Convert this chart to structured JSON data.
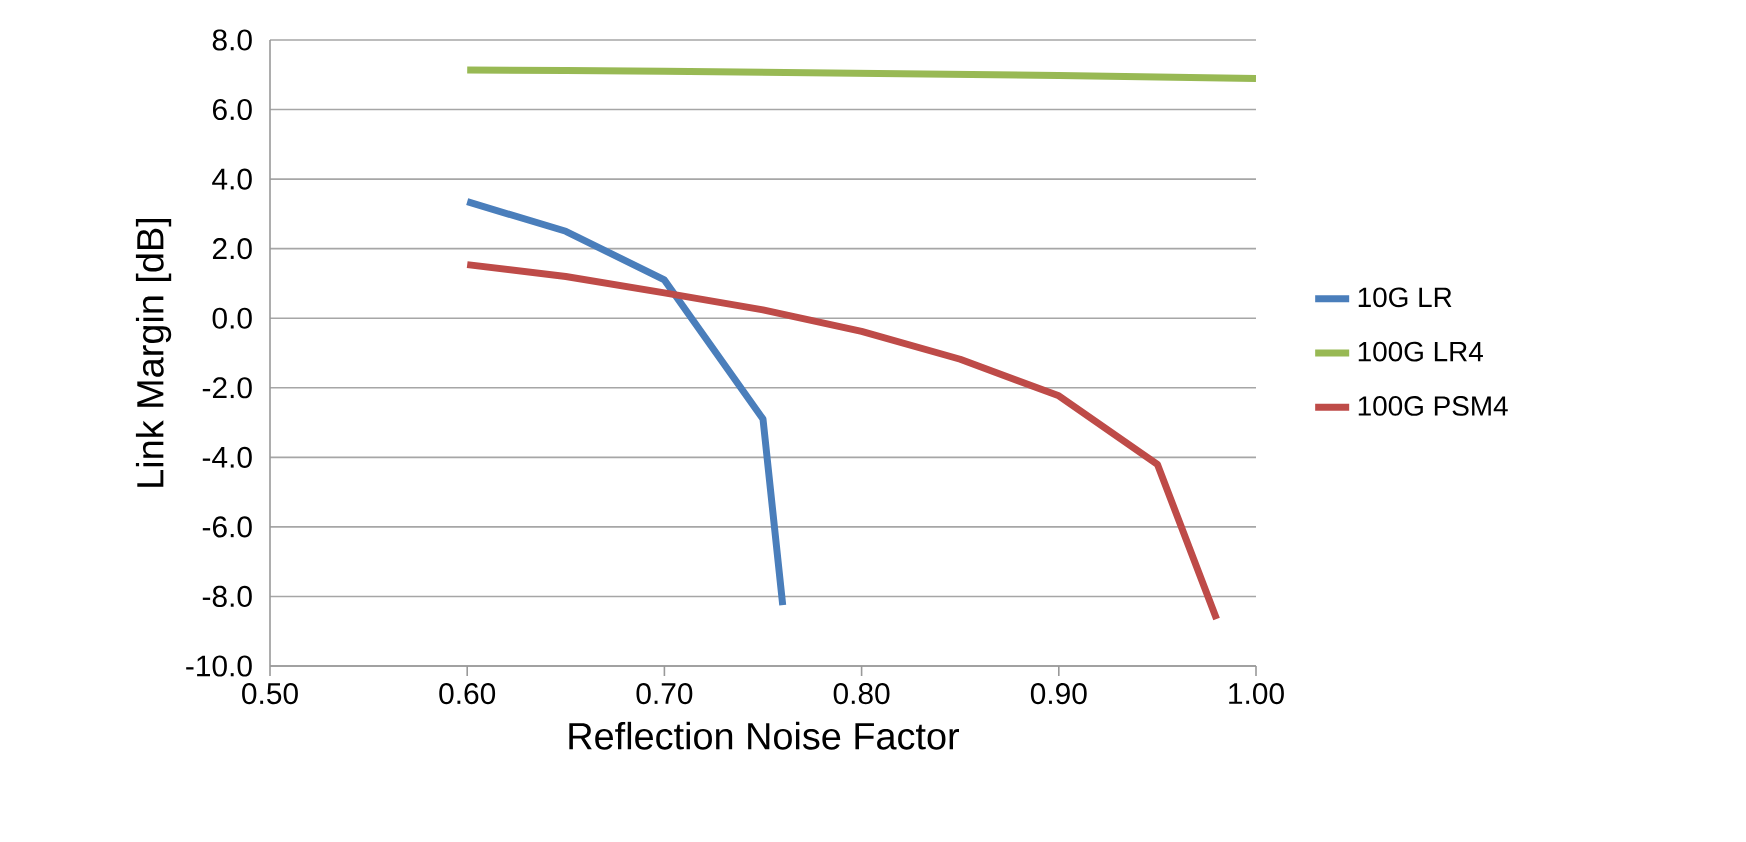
{
  "chart_data": {
    "type": "line",
    "xlabel": "Reflection Noise Factor",
    "ylabel": "Link Margin [dB]",
    "xlim": [
      0.5,
      1.0
    ],
    "ylim": [
      -10,
      8
    ],
    "xticks": [
      {
        "value": 0.5,
        "label": "0.50"
      },
      {
        "value": 0.6,
        "label": "0.60"
      },
      {
        "value": 0.7,
        "label": "0.70"
      },
      {
        "value": 0.8,
        "label": "0.80"
      },
      {
        "value": 0.9,
        "label": "0.90"
      },
      {
        "value": 1.0,
        "label": "1.00"
      }
    ],
    "yticks": [
      {
        "value": -10,
        "label": "-10.0"
      },
      {
        "value": -8,
        "label": "-8.0"
      },
      {
        "value": -6,
        "label": "-6.0"
      },
      {
        "value": -4,
        "label": "-4.0"
      },
      {
        "value": -2,
        "label": "-2.0"
      },
      {
        "value": 0,
        "label": "0.0"
      },
      {
        "value": 2,
        "label": "2.0"
      },
      {
        "value": 4,
        "label": "4.0"
      },
      {
        "value": 6,
        "label": "6.0"
      },
      {
        "value": 8,
        "label": "8.0"
      }
    ],
    "grid": "y",
    "legend": "right",
    "marker": "none",
    "line_style": "solid",
    "series": [
      {
        "name": "10G LR",
        "color": "#4a7ebb",
        "x": [
          0.6,
          0.65,
          0.7,
          0.75,
          0.76
        ],
        "values": [
          3.35,
          2.5,
          1.1,
          -2.9,
          -8.25
        ]
      },
      {
        "name": "100G LR4",
        "color": "#98b954",
        "x": [
          0.6,
          0.65,
          0.7,
          0.8,
          0.9,
          1.0
        ],
        "values": [
          7.14,
          7.12,
          7.1,
          7.04,
          6.98,
          6.89
        ]
      },
      {
        "name": "100G PSM4",
        "color": "#be4b48",
        "x": [
          0.6,
          0.65,
          0.7,
          0.75,
          0.8,
          0.85,
          0.9,
          0.95,
          0.98
        ],
        "values": [
          1.54,
          1.2,
          0.73,
          0.24,
          -0.38,
          -1.18,
          -2.23,
          -4.2,
          -8.65
        ]
      }
    ]
  }
}
